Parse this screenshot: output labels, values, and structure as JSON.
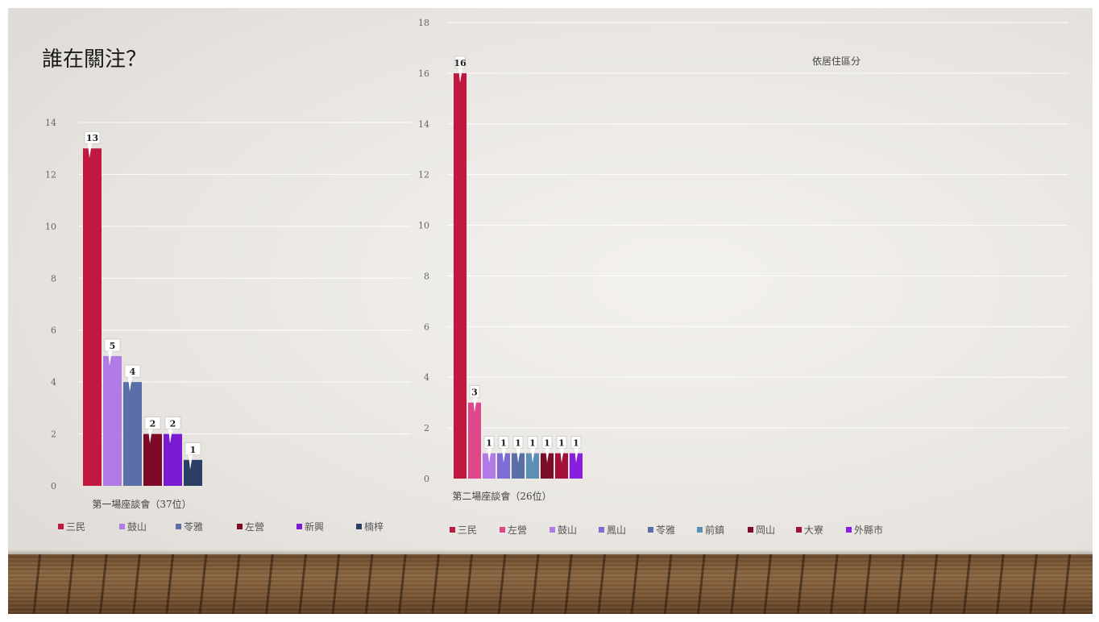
{
  "slide": {
    "title": "誰在關注？",
    "subtitle": "依居住區分"
  },
  "colors": {
    "三民": "#c0183f",
    "鼓山": "#b07be6",
    "苓雅": "#5a6fa8",
    "左營": "#e0468a",
    "新興": "#7a1bd1",
    "楠梓": "#2a3e66",
    "鳳山": "#7e6bd6",
    "前鎮": "#5b8fb5",
    "岡山": "#7a0e2a",
    "大寮": "#a3103a",
    "外縣市": "#8a1ee0",
    "左營_c1": "#7d0a26"
  },
  "chart_data": [
    {
      "type": "bar",
      "title": "",
      "xlabel": "第一場座談會（37位）",
      "ylabel": "",
      "ylim": [
        0,
        14
      ],
      "yticks": [
        0,
        2,
        4,
        6,
        8,
        10,
        12,
        14
      ],
      "categories": [
        "第一場座談會（37位）"
      ],
      "series": [
        {
          "name": "三民",
          "values": [
            13
          ],
          "color": "#c0183f"
        },
        {
          "name": "鼓山",
          "values": [
            5
          ],
          "color": "#b07be6"
        },
        {
          "name": "苓雅",
          "values": [
            4
          ],
          "color": "#5a6fa8"
        },
        {
          "name": "左營",
          "values": [
            2
          ],
          "color": "#7d0a26"
        },
        {
          "name": "新興",
          "values": [
            2
          ],
          "color": "#7a1bd1"
        },
        {
          "name": "楠梓",
          "values": [
            1
          ],
          "color": "#2a3e66"
        }
      ],
      "legend": "bottom",
      "grid": true
    },
    {
      "type": "bar",
      "title": "",
      "xlabel": "第二場座談會（26位）",
      "ylabel": "",
      "ylim": [
        0,
        18
      ],
      "yticks": [
        0,
        2,
        4,
        6,
        8,
        10,
        12,
        14,
        16,
        18
      ],
      "categories": [
        "第二場座談會（26位）"
      ],
      "series": [
        {
          "name": "三民",
          "values": [
            16
          ],
          "color": "#c0183f"
        },
        {
          "name": "左營",
          "values": [
            3
          ],
          "color": "#e0468a"
        },
        {
          "name": "鼓山",
          "values": [
            1
          ],
          "color": "#b07be6"
        },
        {
          "name": "鳳山",
          "values": [
            1
          ],
          "color": "#7e6bd6"
        },
        {
          "name": "苓雅",
          "values": [
            1
          ],
          "color": "#5a6fa8"
        },
        {
          "name": "前鎮",
          "values": [
            1
          ],
          "color": "#5b8fb5"
        },
        {
          "name": "岡山",
          "values": [
            1
          ],
          "color": "#7a0e2a"
        },
        {
          "name": "大寮",
          "values": [
            1
          ],
          "color": "#a3103a"
        },
        {
          "name": "外縣市",
          "values": [
            1
          ],
          "color": "#8a1ee0"
        }
      ],
      "legend": "bottom",
      "grid": true
    }
  ]
}
